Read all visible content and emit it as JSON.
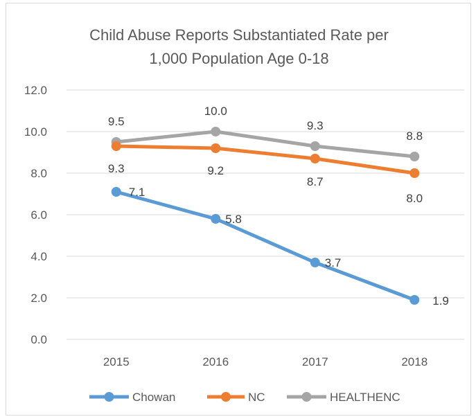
{
  "chart_data": {
    "type": "line",
    "title": "Child Abuse Reports Substantiated Rate per 1,000 Population Age 0-18",
    "title_lines": [
      "Child Abuse Reports Substantiated Rate per",
      "1,000 Population Age 0-18"
    ],
    "categories": [
      "2015",
      "2016",
      "2017",
      "2018"
    ],
    "ylim": [
      0,
      12
    ],
    "yticks": [
      "0.0",
      "2.0",
      "4.0",
      "6.0",
      "8.0",
      "10.0",
      "12.0"
    ],
    "grid": true,
    "legend_position": "bottom",
    "series": [
      {
        "name": "Chowan",
        "color": "#5b9bd5",
        "values": [
          7.1,
          5.8,
          3.7,
          1.9
        ],
        "labels": [
          "7.1",
          "5.8",
          "3.7",
          "1.9"
        ]
      },
      {
        "name": "NC",
        "color": "#ed7d31",
        "values": [
          9.3,
          9.2,
          8.7,
          8.0
        ],
        "labels": [
          "9.3",
          "9.2",
          "8.7",
          "8.0"
        ]
      },
      {
        "name": "HEALTHENC",
        "color": "#a5a5a5",
        "values": [
          9.5,
          10.0,
          9.3,
          8.8
        ],
        "labels": [
          "9.5",
          "10.0",
          "9.3",
          "8.8"
        ]
      }
    ]
  }
}
